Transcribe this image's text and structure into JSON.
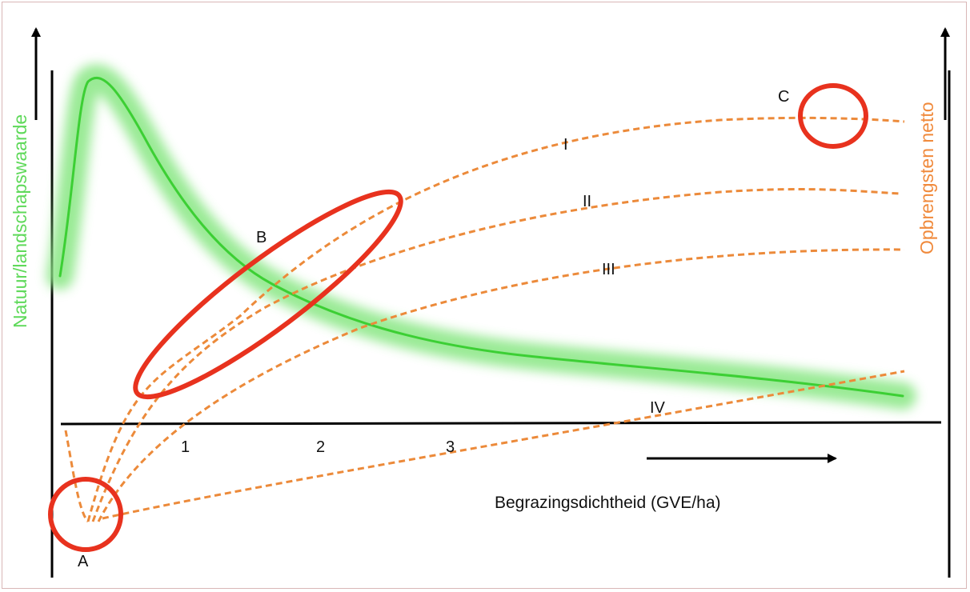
{
  "chart_data": {
    "type": "line",
    "title": "",
    "xlabel": "Begrazingsdichtheid (GVE/ha)",
    "ylabel_left": "Natuur/landschapswaarde",
    "ylabel_right": "Opbrengsten netto",
    "x_ticks": [
      "1",
      "2",
      "3"
    ],
    "colors": {
      "nature": "#3ccf34",
      "nature_glow": "#8fe88a",
      "yield": "#ec8a3a",
      "highlight": "#e8321e",
      "axis": "#000000"
    },
    "series": [
      {
        "name": "I",
        "style": "dashed",
        "color": "#ec8a3a"
      },
      {
        "name": "II",
        "style": "dashed",
        "color": "#ec8a3a"
      },
      {
        "name": "III",
        "style": "dashed",
        "color": "#ec8a3a"
      },
      {
        "name": "IV",
        "style": "dashed",
        "color": "#ec8a3a"
      }
    ],
    "annotations": [
      {
        "label": "A",
        "shape": "circle"
      },
      {
        "label": "B",
        "shape": "ellipse"
      },
      {
        "label": "C",
        "shape": "circle"
      }
    ]
  }
}
